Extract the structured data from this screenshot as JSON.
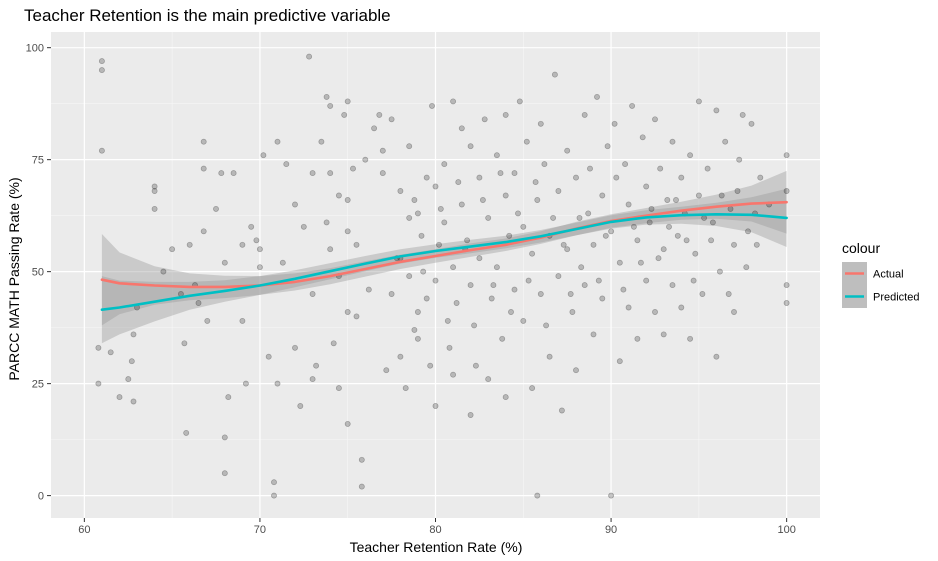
{
  "chart_data": {
    "type": "scatter",
    "title": "Teacher Retention is the main predictive variable",
    "xlabel": "Teacher Retention Rate (%)",
    "ylabel": "PARCC MATH Passing Rate (%)",
    "xlim": [
      58.1,
      101.9
    ],
    "ylim": [
      -5,
      103.5
    ],
    "x_ticks": [
      60,
      70,
      80,
      90,
      100
    ],
    "y_ticks": [
      0,
      25,
      50,
      75,
      100
    ],
    "grid": true,
    "legend": {
      "title": "colour",
      "position": "right",
      "entries": [
        {
          "label": "Actual",
          "color": "#F8766D"
        },
        {
          "label": "Predicted",
          "color": "#00BFC4"
        }
      ]
    },
    "points": [
      [
        61,
        97
      ],
      [
        61,
        95
      ],
      [
        61,
        77
      ],
      [
        60.8,
        33
      ],
      [
        60.8,
        25
      ],
      [
        61.5,
        32
      ],
      [
        62,
        22
      ],
      [
        62.5,
        26
      ],
      [
        62.7,
        30
      ],
      [
        62.8,
        21
      ],
      [
        62.8,
        36
      ],
      [
        63,
        42
      ],
      [
        64,
        69
      ],
      [
        64,
        68
      ],
      [
        64,
        64
      ],
      [
        64.5,
        50
      ],
      [
        65,
        55
      ],
      [
        65.5,
        45
      ],
      [
        65.7,
        34
      ],
      [
        65.8,
        14
      ],
      [
        66,
        56
      ],
      [
        66.3,
        47
      ],
      [
        66.5,
        43
      ],
      [
        66.8,
        79
      ],
      [
        66.8,
        73
      ],
      [
        66.8,
        59
      ],
      [
        67,
        39
      ],
      [
        67.5,
        64
      ],
      [
        67.8,
        72
      ],
      [
        68,
        52
      ],
      [
        68,
        13
      ],
      [
        68,
        5
      ],
      [
        68.2,
        22
      ],
      [
        68.5,
        72
      ],
      [
        69,
        56
      ],
      [
        69,
        39
      ],
      [
        69.2,
        25
      ],
      [
        69.5,
        60
      ],
      [
        69.8,
        57
      ],
      [
        70,
        55
      ],
      [
        70,
        51
      ],
      [
        70.2,
        76
      ],
      [
        70.5,
        31
      ],
      [
        70.8,
        3
      ],
      [
        70.8,
        0
      ],
      [
        71,
        79
      ],
      [
        71,
        25
      ],
      [
        71.3,
        52
      ],
      [
        71.5,
        74
      ],
      [
        72,
        65
      ],
      [
        72,
        33
      ],
      [
        72.3,
        20
      ],
      [
        72.5,
        60
      ],
      [
        72.8,
        98
      ],
      [
        73,
        72
      ],
      [
        73,
        45
      ],
      [
        73,
        26
      ],
      [
        73.2,
        29
      ],
      [
        73.5,
        79
      ],
      [
        73.8,
        89
      ],
      [
        73.8,
        61
      ],
      [
        74,
        87
      ],
      [
        74,
        72
      ],
      [
        74,
        55
      ],
      [
        74.2,
        34
      ],
      [
        74.5,
        67
      ],
      [
        74.5,
        49
      ],
      [
        74.5,
        24
      ],
      [
        74.8,
        85
      ],
      [
        75,
        88
      ],
      [
        75,
        66
      ],
      [
        75,
        59
      ],
      [
        75,
        41
      ],
      [
        75,
        16
      ],
      [
        75.3,
        73
      ],
      [
        75.5,
        56
      ],
      [
        75.5,
        40
      ],
      [
        75.8,
        8
      ],
      [
        75.8,
        2
      ],
      [
        76,
        75
      ],
      [
        76.2,
        46
      ],
      [
        76.5,
        82
      ],
      [
        76.8,
        85
      ],
      [
        77,
        77
      ],
      [
        77.2,
        28
      ],
      [
        77.5,
        84
      ],
      [
        77.8,
        53
      ],
      [
        78,
        68
      ],
      [
        78,
        31
      ],
      [
        78.3,
        24
      ],
      [
        78.5,
        78
      ],
      [
        78.5,
        49
      ],
      [
        78.8,
        66
      ],
      [
        79,
        63
      ],
      [
        79,
        41
      ],
      [
        79,
        35
      ],
      [
        79.2,
        58
      ],
      [
        79.5,
        71
      ],
      [
        79.5,
        44
      ],
      [
        79.8,
        87
      ],
      [
        80,
        69
      ],
      [
        80,
        48
      ],
      [
        80,
        20
      ],
      [
        80.2,
        56
      ],
      [
        80.5,
        74
      ],
      [
        80.5,
        61
      ],
      [
        80.8,
        33
      ],
      [
        81,
        88
      ],
      [
        81,
        51
      ],
      [
        81,
        27
      ],
      [
        81.2,
        43
      ],
      [
        81.5,
        82
      ],
      [
        81.5,
        65
      ],
      [
        81.8,
        57
      ],
      [
        82,
        78
      ],
      [
        82,
        47
      ],
      [
        82,
        18
      ],
      [
        82.2,
        38
      ],
      [
        82.5,
        71
      ],
      [
        82.5,
        53
      ],
      [
        82.8,
        84
      ],
      [
        83,
        62
      ],
      [
        83,
        26
      ],
      [
        83.2,
        44
      ],
      [
        83.5,
        76
      ],
      [
        83.5,
        51
      ],
      [
        83.8,
        35
      ],
      [
        84,
        85
      ],
      [
        84,
        67
      ],
      [
        84,
        22
      ],
      [
        84.2,
        58
      ],
      [
        84.5,
        72
      ],
      [
        84.5,
        46
      ],
      [
        84.8,
        88
      ],
      [
        85,
        60
      ],
      [
        85,
        39
      ],
      [
        85.2,
        79
      ],
      [
        85.5,
        54
      ],
      [
        85.5,
        24
      ],
      [
        85.8,
        66
      ],
      [
        85.8,
        0
      ],
      [
        86,
        83
      ],
      [
        86,
        45
      ],
      [
        86.2,
        74
      ],
      [
        86.5,
        58
      ],
      [
        86.5,
        31
      ],
      [
        86.8,
        94
      ],
      [
        87,
        68
      ],
      [
        87,
        49
      ],
      [
        87.2,
        19
      ],
      [
        87.5,
        77
      ],
      [
        87.5,
        55
      ],
      [
        87.8,
        41
      ],
      [
        88,
        71
      ],
      [
        88,
        28
      ],
      [
        88.2,
        62
      ],
      [
        88.5,
        85
      ],
      [
        88.5,
        47
      ],
      [
        88.8,
        73
      ],
      [
        89,
        56
      ],
      [
        89,
        36
      ],
      [
        89.2,
        89
      ],
      [
        89.5,
        67
      ],
      [
        89.5,
        44
      ],
      [
        89.8,
        78
      ],
      [
        90,
        59
      ],
      [
        90,
        0
      ],
      [
        90.2,
        83
      ],
      [
        90.5,
        52
      ],
      [
        90.5,
        30
      ],
      [
        90.8,
        74
      ],
      [
        91,
        65
      ],
      [
        91,
        42
      ],
      [
        91.2,
        87
      ],
      [
        91.5,
        57
      ],
      [
        91.5,
        35
      ],
      [
        91.8,
        80
      ],
      [
        92,
        69
      ],
      [
        92,
        48
      ],
      [
        92.2,
        61
      ],
      [
        92.5,
        84
      ],
      [
        92.5,
        41
      ],
      [
        92.8,
        73
      ],
      [
        93,
        55
      ],
      [
        93,
        36
      ],
      [
        93.2,
        66
      ],
      [
        93.5,
        79
      ],
      [
        93.5,
        47
      ],
      [
        93.8,
        58
      ],
      [
        94,
        71
      ],
      [
        94,
        42
      ],
      [
        94.2,
        63
      ],
      [
        94.5,
        76
      ],
      [
        94.5,
        35
      ],
      [
        94.8,
        54
      ],
      [
        95,
        88
      ],
      [
        95,
        67
      ],
      [
        95.2,
        45
      ],
      [
        95.5,
        73
      ],
      [
        95.8,
        61
      ],
      [
        96,
        86
      ],
      [
        96,
        31
      ],
      [
        96.2,
        50
      ],
      [
        96.5,
        79
      ],
      [
        96.8,
        64
      ],
      [
        97,
        56
      ],
      [
        97,
        41
      ],
      [
        97.3,
        75
      ],
      [
        97.5,
        85
      ],
      [
        97.8,
        59
      ],
      [
        98,
        83
      ],
      [
        98.2,
        63
      ],
      [
        98.5,
        71
      ],
      [
        99,
        65
      ],
      [
        100,
        76
      ],
      [
        100,
        68
      ],
      [
        100,
        47
      ],
      [
        100,
        43
      ],
      [
        77,
        72
      ],
      [
        77.5,
        45
      ],
      [
        78,
        53
      ],
      [
        78.5,
        62
      ],
      [
        78.8,
        37
      ],
      [
        79.3,
        50
      ],
      [
        79.7,
        29
      ],
      [
        80.3,
        64
      ],
      [
        80.7,
        39
      ],
      [
        81.3,
        70
      ],
      [
        81.7,
        55
      ],
      [
        82.3,
        29
      ],
      [
        82.7,
        66
      ],
      [
        83.3,
        47
      ],
      [
        83.7,
        72
      ],
      [
        84.3,
        41
      ],
      [
        84.7,
        63
      ],
      [
        85.3,
        48
      ],
      [
        85.7,
        70
      ],
      [
        86.3,
        38
      ],
      [
        86.7,
        62
      ],
      [
        87.3,
        56
      ],
      [
        87.7,
        45
      ],
      [
        88.3,
        51
      ],
      [
        88.7,
        63
      ],
      [
        89.3,
        48
      ],
      [
        89.7,
        58
      ],
      [
        90.3,
        71
      ],
      [
        90.7,
        46
      ],
      [
        91.3,
        60
      ],
      [
        91.7,
        52
      ],
      [
        92.3,
        64
      ],
      [
        92.7,
        53
      ],
      [
        93.3,
        60
      ],
      [
        93.7,
        66
      ],
      [
        94.3,
        57
      ],
      [
        94.7,
        48
      ],
      [
        95.3,
        62
      ],
      [
        95.7,
        57
      ],
      [
        96.3,
        67
      ],
      [
        96.7,
        45
      ],
      [
        97.2,
        68
      ],
      [
        97.7,
        51
      ],
      [
        98.3,
        56
      ]
    ],
    "series": [
      {
        "name": "Actual",
        "color": "#F8766D",
        "x": [
          61,
          62,
          64,
          66,
          68,
          70,
          72,
          74,
          76,
          78,
          80,
          82,
          84,
          86,
          88,
          90,
          92,
          94,
          96,
          98,
          100
        ],
        "y": [
          48.2,
          47.4,
          46.9,
          46.6,
          46.6,
          46.9,
          47.7,
          49.0,
          50.6,
          52.2,
          53.5,
          54.8,
          56.0,
          57.6,
          59.6,
          61.3,
          62.5,
          63.6,
          64.5,
          65.2,
          65.5
        ],
        "band_lower": [
          38.0,
          40.5,
          42.6,
          43.6,
          44.1,
          44.8,
          45.8,
          47.2,
          48.9,
          50.6,
          52.0,
          53.3,
          54.6,
          56.2,
          58.1,
          59.8,
          60.8,
          61.6,
          61.8,
          61.2,
          58.5
        ],
        "band_upper": [
          58.4,
          54.3,
          51.2,
          49.6,
          49.1,
          49.0,
          49.6,
          50.8,
          52.3,
          53.8,
          55.0,
          56.3,
          57.4,
          59.0,
          61.1,
          62.8,
          64.2,
          65.6,
          67.2,
          69.2,
          72.5
        ]
      },
      {
        "name": "Predicted",
        "color": "#00BFC4",
        "x": [
          61,
          62,
          64,
          66,
          68,
          70,
          72,
          74,
          76,
          78,
          80,
          82,
          84,
          86,
          88,
          90,
          92,
          94,
          96,
          98,
          100
        ],
        "y": [
          41.5,
          42.0,
          43.3,
          44.6,
          45.7,
          46.9,
          48.4,
          50.1,
          51.8,
          53.4,
          54.6,
          55.6,
          56.6,
          57.9,
          59.5,
          61.1,
          62.1,
          62.6,
          62.8,
          62.7,
          62.0
        ],
        "band_lower": [
          34.0,
          36.0,
          38.9,
          41.5,
          43.3,
          44.8,
          46.5,
          48.3,
          50.1,
          51.8,
          53.1,
          54.1,
          55.2,
          56.5,
          58.1,
          59.6,
          60.5,
          60.7,
          60.2,
          58.8,
          55.5
        ],
        "band_upper": [
          49.0,
          48.0,
          47.7,
          47.7,
          48.1,
          49.0,
          50.3,
          51.9,
          53.5,
          55.0,
          56.1,
          57.1,
          58.0,
          59.3,
          60.9,
          62.6,
          63.7,
          64.5,
          65.4,
          66.6,
          68.5
        ]
      }
    ]
  }
}
